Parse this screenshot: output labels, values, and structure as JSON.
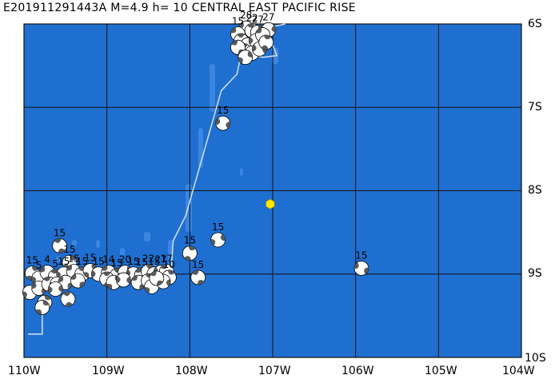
{
  "map": {
    "title": "E201911291443A  M=4.9  h= 10  CENTRAL EAST PACIFIC RISE",
    "colors": {
      "ocean": "#1f6fd0",
      "shallow": "#3b86e2",
      "grid": "#111111",
      "ridge": "#c8dcf0",
      "epicenter": "#ffe800",
      "mech_dark": "#5a5a5a",
      "mech_light": "#ffffff"
    },
    "lat_labels": [
      "6S",
      "7S",
      "8S",
      "9S",
      "10S"
    ],
    "lon_labels": [
      "110W",
      "109W",
      "108W",
      "107W",
      "106W",
      "105W",
      "104W"
    ],
    "bounds": {
      "lon_min": -110,
      "lon_max": -104,
      "lat_min": -10,
      "lat_max": -6
    },
    "epicenter": {
      "lon": -107.03,
      "lat": -8.16,
      "icon": "hexagon-icon"
    },
    "plate_boundary": [
      [
        -109.95,
        -9.72
      ],
      [
        -109.78,
        -9.72
      ],
      [
        -109.78,
        -9.0
      ],
      [
        -109.5,
        -9.0
      ],
      [
        -108.23,
        -9.0
      ],
      [
        -108.2,
        -8.6
      ],
      [
        -108.05,
        -8.3
      ],
      [
        -107.82,
        -7.5
      ],
      [
        -107.62,
        -6.8
      ],
      [
        -107.43,
        -6.6
      ],
      [
        -107.38,
        -6.35
      ],
      [
        -107.12,
        -6.4
      ],
      [
        -106.95,
        -6.38
      ],
      [
        -107.0,
        -6.25
      ],
      [
        -107.08,
        -6.05
      ],
      [
        -106.85,
        -6.0
      ]
    ],
    "mechanisms": [
      {
        "lon": -107.32,
        "lat": -6.05,
        "depth": "28"
      },
      {
        "lon": -107.25,
        "lat": -6.08,
        "depth": "22"
      },
      {
        "lon": -107.18,
        "lat": -6.1,
        "depth": "27"
      },
      {
        "lon": -107.05,
        "lat": -6.07,
        "depth": "27"
      },
      {
        "lon": -107.42,
        "lat": -6.12,
        "depth": "15"
      },
      {
        "lon": -107.38,
        "lat": -6.2,
        "depth": ""
      },
      {
        "lon": -107.3,
        "lat": -6.25,
        "depth": ""
      },
      {
        "lon": -107.2,
        "lat": -6.2,
        "depth": ""
      },
      {
        "lon": -107.12,
        "lat": -6.13,
        "depth": ""
      },
      {
        "lon": -107.35,
        "lat": -6.32,
        "depth": ""
      },
      {
        "lon": -107.25,
        "lat": -6.35,
        "depth": ""
      },
      {
        "lon": -107.16,
        "lat": -6.3,
        "depth": ""
      },
      {
        "lon": -107.42,
        "lat": -6.28,
        "depth": ""
      },
      {
        "lon": -107.08,
        "lat": -6.22,
        "depth": ""
      },
      {
        "lon": -107.33,
        "lat": -6.4,
        "depth": ""
      },
      {
        "lon": -107.6,
        "lat": -7.19,
        "depth": "15"
      },
      {
        "lon": -107.9,
        "lat": -9.04,
        "depth": "15"
      },
      {
        "lon": -108.0,
        "lat": -8.75,
        "depth": "15"
      },
      {
        "lon": -107.66,
        "lat": -8.59,
        "depth": "15"
      },
      {
        "lon": -105.93,
        "lat": -8.93,
        "depth": "15"
      },
      {
        "lon": -109.57,
        "lat": -8.66,
        "depth": "15"
      },
      {
        "lon": -109.9,
        "lat": -8.99,
        "depth": "15"
      },
      {
        "lon": -109.82,
        "lat": -9.05,
        "depth": "5"
      },
      {
        "lon": -109.72,
        "lat": -8.98,
        "depth": "4"
      },
      {
        "lon": -109.62,
        "lat": -9.03,
        "depth": "5"
      },
      {
        "lon": -109.45,
        "lat": -8.86,
        "depth": "15"
      },
      {
        "lon": -109.52,
        "lat": -9.0,
        "depth": "15"
      },
      {
        "lon": -109.4,
        "lat": -8.97,
        "depth": "15"
      },
      {
        "lon": -109.3,
        "lat": -9.0,
        "depth": "15"
      },
      {
        "lon": -109.2,
        "lat": -8.96,
        "depth": "15"
      },
      {
        "lon": -109.1,
        "lat": -9.0,
        "depth": "15"
      },
      {
        "lon": -108.98,
        "lat": -8.98,
        "depth": "14"
      },
      {
        "lon": -108.88,
        "lat": -9.02,
        "depth": "15"
      },
      {
        "lon": -108.78,
        "lat": -8.98,
        "depth": "20"
      },
      {
        "lon": -108.68,
        "lat": -9.0,
        "depth": "15"
      },
      {
        "lon": -108.58,
        "lat": -9.01,
        "depth": "15"
      },
      {
        "lon": -108.5,
        "lat": -8.97,
        "depth": "22"
      },
      {
        "lon": -108.43,
        "lat": -9.0,
        "depth": "15"
      },
      {
        "lon": -108.35,
        "lat": -8.98,
        "depth": "27"
      },
      {
        "lon": -108.28,
        "lat": -8.97,
        "depth": "17"
      },
      {
        "lon": -108.25,
        "lat": -9.04,
        "depth": "10"
      },
      {
        "lon": -109.93,
        "lat": -9.22,
        "depth": ""
      },
      {
        "lon": -109.82,
        "lat": -9.17,
        "depth": ""
      },
      {
        "lon": -109.7,
        "lat": -9.12,
        "depth": ""
      },
      {
        "lon": -109.75,
        "lat": -9.34,
        "depth": ""
      },
      {
        "lon": -109.6,
        "lat": -9.12,
        "depth": ""
      },
      {
        "lon": -109.5,
        "lat": -9.1,
        "depth": ""
      },
      {
        "lon": -109.47,
        "lat": -9.3,
        "depth": ""
      },
      {
        "lon": -109.78,
        "lat": -9.4,
        "depth": ""
      },
      {
        "lon": -109.62,
        "lat": -9.18,
        "depth": ""
      },
      {
        "lon": -109.35,
        "lat": -9.08,
        "depth": ""
      },
      {
        "lon": -109.0,
        "lat": -9.06,
        "depth": ""
      },
      {
        "lon": -108.92,
        "lat": -9.1,
        "depth": ""
      },
      {
        "lon": -108.8,
        "lat": -9.07,
        "depth": ""
      },
      {
        "lon": -108.62,
        "lat": -9.1,
        "depth": ""
      },
      {
        "lon": -108.5,
        "lat": -9.08,
        "depth": ""
      },
      {
        "lon": -108.46,
        "lat": -9.15,
        "depth": ""
      },
      {
        "lon": -108.32,
        "lat": -9.09,
        "depth": ""
      },
      {
        "lon": -108.4,
        "lat": -9.05,
        "depth": ""
      }
    ]
  }
}
